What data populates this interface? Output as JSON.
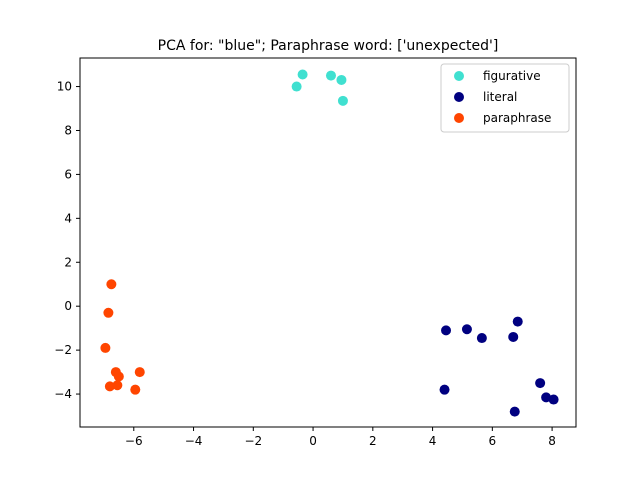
{
  "chart_data": {
    "type": "scatter",
    "title": "PCA for: \"blue\"; Paraphrase word: ['unexpected']",
    "xlabel": "",
    "ylabel": "",
    "xlim": [
      -7.8,
      8.8
    ],
    "ylim": [
      -5.5,
      11.3
    ],
    "xticks": [
      -6,
      -4,
      -2,
      0,
      2,
      4,
      6,
      8
    ],
    "yticks": [
      -4,
      -2,
      0,
      2,
      4,
      6,
      8,
      10
    ],
    "grid": false,
    "legend_position": "top-right",
    "series": [
      {
        "name": "figurative",
        "color": "#40e0d0",
        "points": [
          [
            -0.55,
            10.0
          ],
          [
            -0.35,
            10.55
          ],
          [
            0.6,
            10.5
          ],
          [
            0.95,
            10.3
          ],
          [
            1.0,
            9.35
          ]
        ]
      },
      {
        "name": "literal",
        "color": "#000080",
        "points": [
          [
            4.45,
            -1.1
          ],
          [
            5.15,
            -1.05
          ],
          [
            5.65,
            -1.45
          ],
          [
            6.7,
            -1.4
          ],
          [
            6.85,
            -0.7
          ],
          [
            4.4,
            -3.8
          ],
          [
            7.6,
            -3.5
          ],
          [
            7.8,
            -4.15
          ],
          [
            8.05,
            -4.25
          ],
          [
            6.75,
            -4.8
          ]
        ]
      },
      {
        "name": "paraphrase",
        "color": "#ff4500",
        "points": [
          [
            -6.75,
            1.0
          ],
          [
            -6.85,
            -0.3
          ],
          [
            -6.95,
            -1.9
          ],
          [
            -6.6,
            -3.0
          ],
          [
            -6.5,
            -3.2
          ],
          [
            -6.8,
            -3.65
          ],
          [
            -6.55,
            -3.6
          ],
          [
            -5.8,
            -3.0
          ],
          [
            -5.95,
            -3.8
          ]
        ]
      }
    ]
  }
}
